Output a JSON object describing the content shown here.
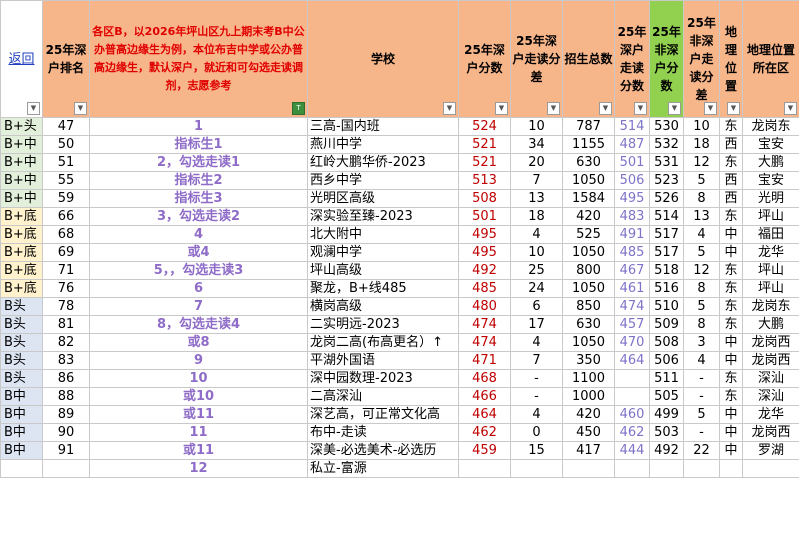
{
  "header": {
    "back_link": "返回",
    "rank": "25年深户排名",
    "note": "各区B，以2026年坪山区九上期末考B中公办普高边缘生为例，本位布吉中学或公办普高边缘生，默认深户，就近和可勾选走读调剂，志愿参考",
    "school": "学校",
    "sz_score": "25年深户分数",
    "sz_diff": "25年深户走读分差",
    "enroll": "招生总数",
    "sz_commute_score": "25年深户走读分数",
    "nonsz_score": "25年非深户分数",
    "nonsz_diff": "25年非深户走读分差",
    "location": "地理位置",
    "district": "地理位置所在区",
    "filter_glyph": "▼",
    "active_filter_glyph": "T"
  },
  "tier_colors": {
    "g": "#e2efda",
    "y": "#fff2cc",
    "b": "#dde5f2",
    "w": "#ffffff"
  },
  "rows": [
    {
      "tier": "B+头",
      "tc": "g",
      "rank": "47",
      "path": "1",
      "school": "三高-国内班",
      "sz": "524",
      "diff": "10",
      "enroll": "787",
      "szc": "514",
      "nsz": "530",
      "ndiff": "10",
      "loc": "东",
      "dist": "龙岗东"
    },
    {
      "tier": "B+中",
      "tc": "g",
      "rank": "50",
      "path": "指标生1",
      "school": "燕川中学",
      "sz": "521",
      "diff": "34",
      "enroll": "1155",
      "szc": "487",
      "nsz": "532",
      "ndiff": "18",
      "loc": "西",
      "dist": "宝安"
    },
    {
      "tier": "B+中",
      "tc": "g",
      "rank": "51",
      "path": "2，勾选走读1",
      "school": "红岭大鹏华侨-2023",
      "sz": "521",
      "diff": "20",
      "enroll": "630",
      "szc": "501",
      "nsz": "531",
      "ndiff": "12",
      "loc": "东",
      "dist": "大鹏"
    },
    {
      "tier": "B+中",
      "tc": "g",
      "rank": "55",
      "path": "指标生2",
      "school": "西乡中学",
      "sz": "513",
      "diff": "7",
      "enroll": "1050",
      "szc": "506",
      "nsz": "523",
      "ndiff": "5",
      "loc": "西",
      "dist": "宝安"
    },
    {
      "tier": "B+中",
      "tc": "g",
      "rank": "59",
      "path": "指标生3",
      "school": "光明区高级",
      "sz": "508",
      "diff": "13",
      "enroll": "1584",
      "szc": "495",
      "nsz": "526",
      "ndiff": "8",
      "loc": "西",
      "dist": "光明"
    },
    {
      "tier": "B+底",
      "tc": "y",
      "rank": "66",
      "path": "3，勾选走读2",
      "school": "深实验至臻-2023",
      "sz": "501",
      "diff": "18",
      "enroll": "420",
      "szc": "483",
      "nsz": "514",
      "ndiff": "13",
      "loc": "东",
      "dist": "坪山"
    },
    {
      "tier": "B+底",
      "tc": "y",
      "rank": "68",
      "path": "4",
      "school": "北大附中",
      "sz": "495",
      "diff": "4",
      "enroll": "525",
      "szc": "491",
      "nsz": "517",
      "ndiff": "4",
      "loc": "中",
      "dist": "福田"
    },
    {
      "tier": "B+底",
      "tc": "y",
      "rank": "69",
      "path": "或4",
      "school": "观澜中学",
      "sz": "495",
      "diff": "10",
      "enroll": "1050",
      "szc": "485",
      "nsz": "517",
      "ndiff": "5",
      "loc": "中",
      "dist": "龙华"
    },
    {
      "tier": "B+底",
      "tc": "y",
      "rank": "71",
      "path": "5，，勾选走读3",
      "school": "坪山高级",
      "sz": "492",
      "diff": "25",
      "enroll": "800",
      "szc": "467",
      "nsz": "518",
      "ndiff": "12",
      "loc": "东",
      "dist": "坪山"
    },
    {
      "tier": "B+底",
      "tc": "y",
      "rank": "76",
      "path": "6",
      "school": "聚龙，B+线485",
      "sz": "485",
      "diff": "24",
      "enroll": "1050",
      "szc": "461",
      "nsz": "516",
      "ndiff": "8",
      "loc": "东",
      "dist": "坪山"
    },
    {
      "tier": "B头",
      "tc": "b",
      "rank": "78",
      "path": "7",
      "school": "横岗高级",
      "sz": "480",
      "diff": "6",
      "enroll": "850",
      "szc": "474",
      "nsz": "510",
      "ndiff": "5",
      "loc": "东",
      "dist": "龙岗东"
    },
    {
      "tier": "B头",
      "tc": "b",
      "rank": "81",
      "path": "8，勾选走读4",
      "school": "二实明远-2023",
      "sz": "474",
      "diff": "17",
      "enroll": "630",
      "szc": "457",
      "nsz": "509",
      "ndiff": "8",
      "loc": "东",
      "dist": "大鹏"
    },
    {
      "tier": "B头",
      "tc": "b",
      "rank": "82",
      "path": "或8",
      "school": "龙岗二高(布高更名）↑",
      "sz": "474",
      "diff": "4",
      "enroll": "1050",
      "szc": "470",
      "nsz": "508",
      "ndiff": "3",
      "loc": "中",
      "dist": "龙岗西"
    },
    {
      "tier": "B头",
      "tc": "b",
      "rank": "83",
      "path": "9",
      "school": "平湖外国语",
      "sz": "471",
      "diff": "7",
      "enroll": "350",
      "szc": "464",
      "nsz": "506",
      "ndiff": "4",
      "loc": "中",
      "dist": "龙岗西"
    },
    {
      "tier": "B头",
      "tc": "b",
      "rank": "86",
      "path": "10",
      "school": "深中园数理-2023",
      "sz": "468",
      "diff": "-",
      "enroll": "1100",
      "szc": "",
      "nsz": "511",
      "ndiff": "-",
      "loc": "东",
      "dist": "深汕"
    },
    {
      "tier": "B中",
      "tc": "b",
      "rank": "88",
      "path": "或10",
      "school": "二高深汕",
      "sz": "466",
      "diff": "-",
      "enroll": "1000",
      "szc": "",
      "nsz": "505",
      "ndiff": "-",
      "loc": "东",
      "dist": "深汕"
    },
    {
      "tier": "B中",
      "tc": "b",
      "rank": "89",
      "path": "或11",
      "school": "深艺高，可正常文化高",
      "sz": "464",
      "diff": "4",
      "enroll": "420",
      "szc": "460",
      "nsz": "499",
      "ndiff": "5",
      "loc": "中",
      "dist": "龙华"
    },
    {
      "tier": "B中",
      "tc": "b",
      "rank": "90",
      "path": "11",
      "school": "布中-走读",
      "sz": "462",
      "diff": "0",
      "enroll": "450",
      "szc": "462",
      "nsz": "503",
      "ndiff": "-",
      "loc": "中",
      "dist": "龙岗西"
    },
    {
      "tier": "B中",
      "tc": "b",
      "rank": "91",
      "path": "或11",
      "school": "深美-必选美术-必选历",
      "sz": "459",
      "diff": "15",
      "enroll": "417",
      "szc": "444",
      "nsz": "492",
      "ndiff": "22",
      "loc": "中",
      "dist": "罗湖"
    },
    {
      "tier": "",
      "tc": "w",
      "rank": "",
      "path": "12",
      "school": "私立-富源",
      "sz": "",
      "diff": "",
      "enroll": "",
      "szc": "",
      "nsz": "",
      "ndiff": "",
      "loc": "",
      "dist": ""
    }
  ]
}
